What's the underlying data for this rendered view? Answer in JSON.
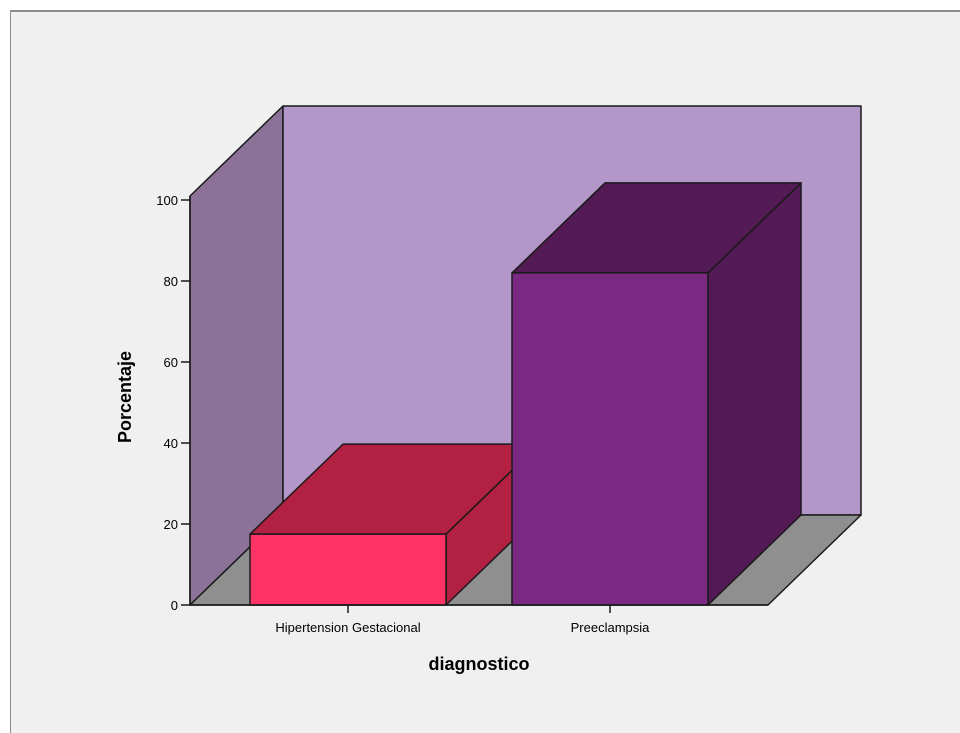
{
  "chart_data": {
    "type": "bar",
    "categories": [
      "Hipertension Gestacional",
      "Preeclampsia"
    ],
    "values": [
      17.5,
      82.0
    ],
    "xlabel": "diagnostico",
    "ylabel": "Porcentaje",
    "ylim": [
      0,
      100
    ],
    "yticks": [
      "0",
      "20",
      "40",
      "60",
      "80",
      "100"
    ],
    "grid": false,
    "legend": "none",
    "colors": {
      "bar_front": [
        "#ff3366",
        "#7b2882"
      ],
      "bar_top": [
        "#b22042",
        "#531a55"
      ],
      "bar_side": [
        "#b22042",
        "#531a55"
      ],
      "back_wall": "#b497c9",
      "side_wall": "#8c7298",
      "floor": "#8f8f8f",
      "outline": "#1a1a1a"
    }
  }
}
